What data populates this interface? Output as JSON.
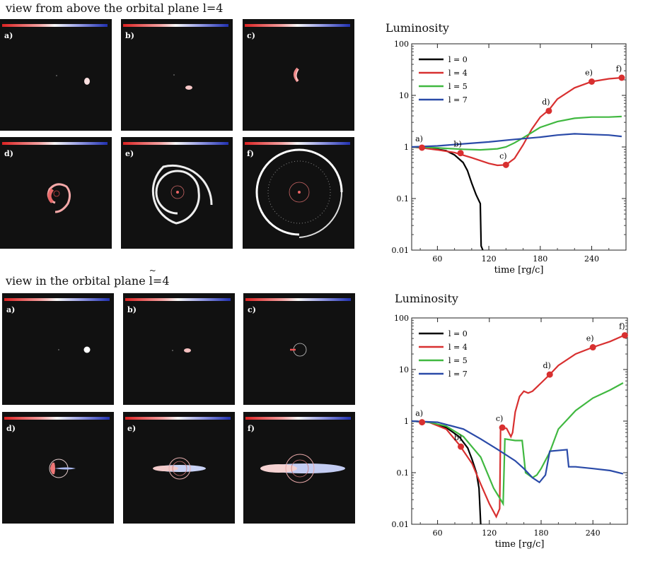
{
  "top": {
    "title_prefix": "view from above the orbital plane",
    "title_l": "l",
    "title_suffix": "=4",
    "panel_labels": [
      "a)",
      "b)",
      "c)",
      "d)",
      "e)",
      "f)"
    ]
  },
  "bottom": {
    "title_prefix": "view in the orbital plane",
    "title_l": "l",
    "title_suffix": "=4",
    "panel_labels": [
      "a)",
      "b)",
      "c)",
      "d)",
      "e)",
      "f)"
    ]
  },
  "chart_data": [
    {
      "type": "line",
      "title": "Luminosity",
      "xlabel": "time [rg/c]",
      "ylabel": "",
      "xlim": [
        30,
        280
      ],
      "ylim": [
        0.01,
        100
      ],
      "yscale": "log",
      "xticks": [
        "60",
        "120",
        "180",
        "240"
      ],
      "yticks": [
        "0.01",
        "0.1",
        "1",
        "10",
        "100"
      ],
      "legend_position": "top-left",
      "series": [
        {
          "name": "l = 0",
          "color": "#000000",
          "x": [
            30,
            50,
            70,
            80,
            90,
            95,
            100,
            105,
            110,
            111,
            113
          ],
          "y": [
            1.0,
            0.95,
            0.85,
            0.7,
            0.5,
            0.35,
            0.2,
            0.12,
            0.08,
            0.012,
            0.01
          ]
        },
        {
          "name": "l = 4",
          "color": "#d83030",
          "x": [
            30,
            40,
            60,
            80,
            100,
            120,
            130,
            140,
            150,
            160,
            170,
            180,
            190,
            200,
            220,
            240,
            260,
            275
          ],
          "y": [
            1.0,
            0.97,
            0.88,
            0.78,
            0.62,
            0.48,
            0.44,
            0.45,
            0.6,
            1.1,
            2.2,
            3.8,
            5.2,
            8.5,
            14,
            18.5,
            21,
            22
          ]
        },
        {
          "name": "l = 5",
          "color": "#40b840",
          "x": [
            30,
            50,
            70,
            90,
            110,
            130,
            140,
            150,
            160,
            170,
            180,
            200,
            220,
            240,
            260,
            275
          ],
          "y": [
            1.0,
            0.98,
            0.94,
            0.9,
            0.88,
            0.92,
            1.0,
            1.2,
            1.5,
            1.9,
            2.4,
            3.1,
            3.6,
            3.8,
            3.8,
            3.9
          ]
        },
        {
          "name": "l = 7",
          "color": "#2a4aa8",
          "x": [
            30,
            60,
            90,
            120,
            150,
            180,
            200,
            220,
            240,
            260,
            275
          ],
          "y": [
            1.0,
            1.05,
            1.15,
            1.25,
            1.4,
            1.55,
            1.7,
            1.8,
            1.75,
            1.7,
            1.6
          ]
        }
      ],
      "annotations": [
        {
          "label": "a)",
          "x": 42,
          "y": 0.97
        },
        {
          "label": "b)",
          "x": 87,
          "y": 0.76
        },
        {
          "label": "c)",
          "x": 140,
          "y": 0.45
        },
        {
          "label": "d)",
          "x": 190,
          "y": 5.0
        },
        {
          "label": "e)",
          "x": 240,
          "y": 18.5
        },
        {
          "label": "f)",
          "x": 275,
          "y": 22
        }
      ]
    },
    {
      "type": "line",
      "title": "Luminosity",
      "xlabel": "time [rg/c]",
      "ylabel": "",
      "xlim": [
        30,
        280
      ],
      "ylim": [
        0.01,
        100
      ],
      "yscale": "log",
      "xticks": [
        "60",
        "120",
        "180",
        "240"
      ],
      "yticks": [
        "0.01",
        "0.1",
        "1",
        "10",
        "100"
      ],
      "legend_position": "top-left",
      "series": [
        {
          "name": "l = 0",
          "color": "#000000",
          "x": [
            30,
            50,
            70,
            85,
            95,
            100,
            105,
            108,
            110
          ],
          "y": [
            1.0,
            0.95,
            0.75,
            0.5,
            0.3,
            0.18,
            0.1,
            0.05,
            0.01
          ]
        },
        {
          "name": "l = 4",
          "color": "#d83030",
          "x": [
            30,
            50,
            70,
            85,
            100,
            110,
            120,
            128,
            132,
            133,
            140,
            145,
            147,
            150,
            155,
            160,
            165,
            170,
            180,
            190,
            200,
            220,
            240,
            260,
            275
          ],
          "y": [
            1.0,
            0.95,
            0.7,
            0.35,
            0.15,
            0.06,
            0.025,
            0.014,
            0.02,
            0.75,
            0.72,
            0.5,
            0.6,
            1.5,
            3.0,
            3.8,
            3.5,
            3.8,
            5.5,
            8.0,
            12,
            20,
            27,
            35,
            45
          ]
        },
        {
          "name": "l = 5",
          "color": "#40b840",
          "x": [
            30,
            50,
            70,
            90,
            110,
            125,
            136,
            138,
            150,
            158,
            162,
            170,
            175,
            180,
            190,
            200,
            220,
            240,
            260,
            275
          ],
          "y": [
            1.0,
            0.95,
            0.8,
            0.5,
            0.2,
            0.05,
            0.025,
            0.45,
            0.42,
            0.42,
            0.1,
            0.08,
            0.09,
            0.12,
            0.25,
            0.7,
            1.6,
            2.8,
            4.0,
            5.5
          ]
        },
        {
          "name": "l = 7",
          "color": "#2a4aa8",
          "x": [
            30,
            60,
            90,
            110,
            130,
            150,
            160,
            170,
            178,
            185,
            190,
            210,
            212,
            220,
            240,
            260,
            275
          ],
          "y": [
            1.0,
            0.95,
            0.7,
            0.45,
            0.28,
            0.17,
            0.12,
            0.08,
            0.065,
            0.09,
            0.26,
            0.28,
            0.13,
            0.13,
            0.12,
            0.11,
            0.095
          ]
        }
      ],
      "annotations": [
        {
          "label": "a)",
          "x": 42,
          "y": 0.95
        },
        {
          "label": "b)",
          "x": 87,
          "y": 0.32
        },
        {
          "label": "c)",
          "x": 135,
          "y": 0.75
        },
        {
          "label": "d)",
          "x": 190,
          "y": 8.0
        },
        {
          "label": "e)",
          "x": 240,
          "y": 27
        },
        {
          "label": "f)",
          "x": 277,
          "y": 46
        }
      ]
    }
  ]
}
